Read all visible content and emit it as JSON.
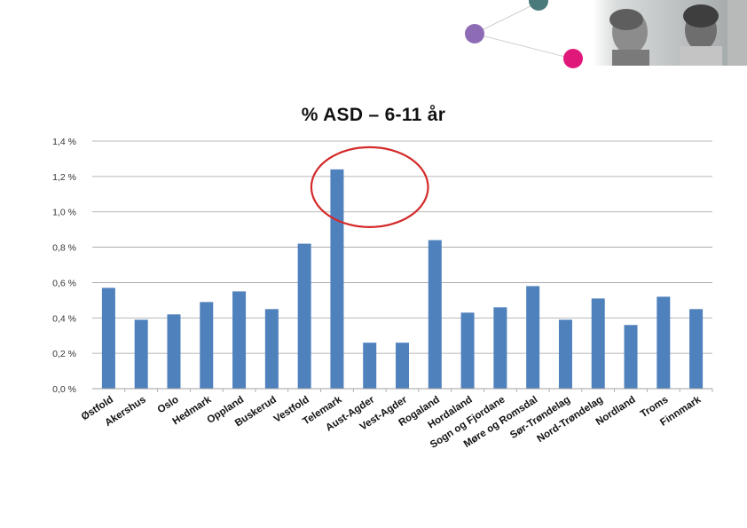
{
  "colors": {
    "bar": "#4f81bd",
    "highlight_circle": "#d42a2a",
    "gridline": "#a0a0a0",
    "accent_teal": "#4a7a7c",
    "accent_purple": "#8e6bb5",
    "accent_magenta": "#e0187a"
  },
  "decor": {
    "photo": "people-photo",
    "dots": [
      "teal-dot",
      "purple-dot",
      "magenta-dot"
    ]
  },
  "chart_data": {
    "type": "bar",
    "title": "% ASD – 6-11 år",
    "xlabel": "",
    "ylabel": "",
    "ylim": [
      0,
      1.4
    ],
    "y_ticks": [
      "0,0 %",
      "0,2 %",
      "0,4 %",
      "0,6 %",
      "0,8 %",
      "1,0 %",
      "1,2 %",
      "1,4 %"
    ],
    "grid": true,
    "categories": [
      "Østfold",
      "Akershus",
      "Oslo",
      "Hedmark",
      "Oppland",
      "Buskerud",
      "Vestfold",
      "Telemark",
      "Aust-Agder",
      "Vest-Agder",
      "Rogaland",
      "Hordaland",
      "Sogn og Fjordane",
      "Møre og Romsdal",
      "Sør-Trøndelag",
      "Nord-Trøndelag",
      "Nordland",
      "Troms",
      "Finnmark"
    ],
    "values": [
      0.57,
      0.39,
      0.42,
      0.49,
      0.55,
      0.45,
      0.82,
      1.24,
      0.26,
      0.26,
      0.84,
      0.43,
      0.46,
      0.58,
      0.39,
      0.51,
      0.36,
      0.52,
      0.45
    ],
    "highlighted": [
      "Telemark",
      "Aust-Agder",
      "Vest-Agder"
    ]
  }
}
